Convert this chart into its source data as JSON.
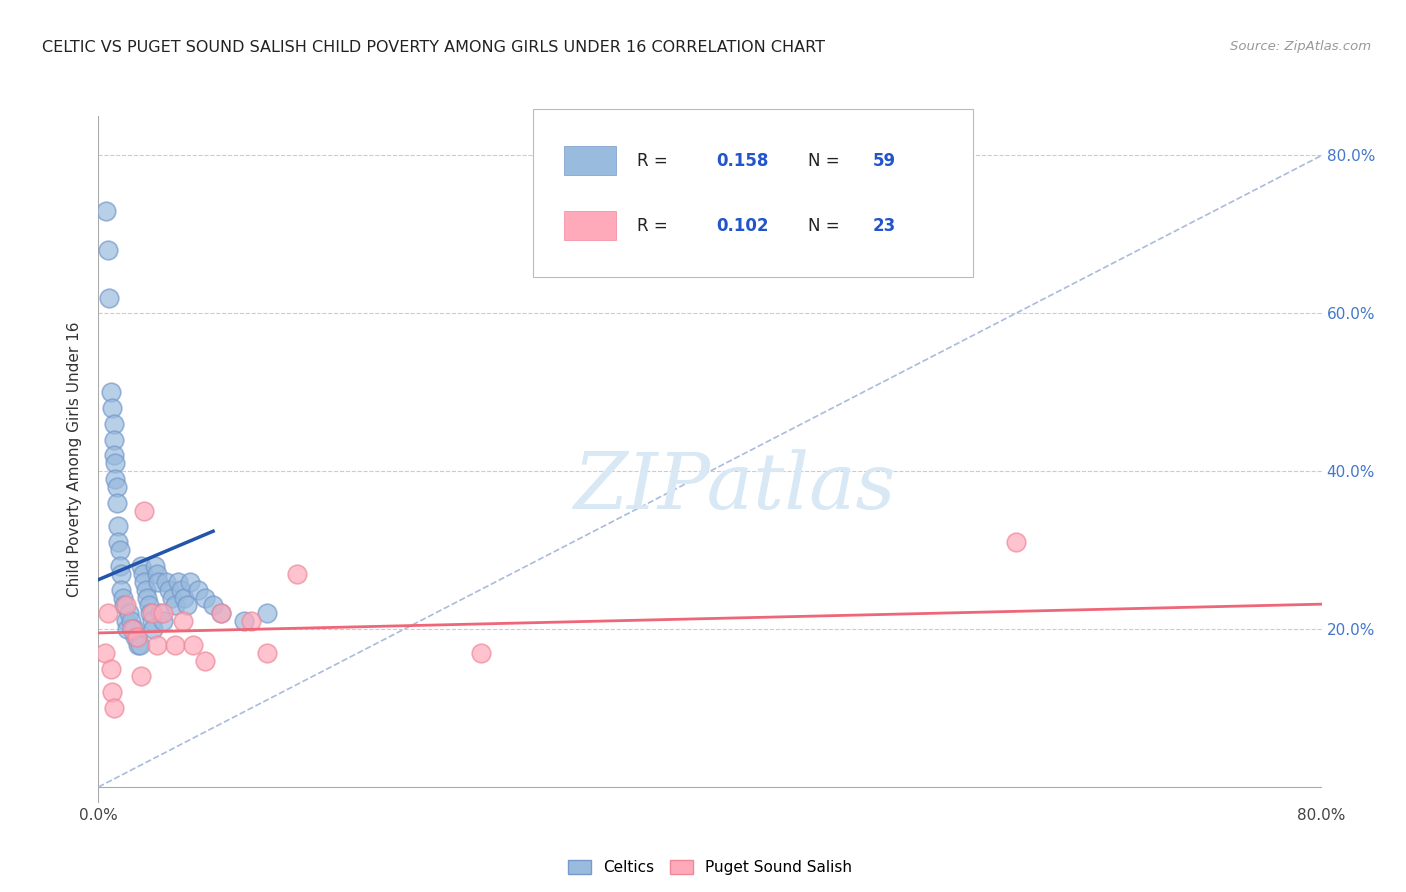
{
  "title": "CELTIC VS PUGET SOUND SALISH CHILD POVERTY AMONG GIRLS UNDER 16 CORRELATION CHART",
  "source": "Source: ZipAtlas.com",
  "ylabel": "Child Poverty Among Girls Under 16",
  "xlim": [
    0.0,
    0.8
  ],
  "ylim": [
    -0.02,
    0.85
  ],
  "plot_ylim": [
    0.0,
    0.8
  ],
  "xticks": [
    0.0,
    0.8
  ],
  "xticklabels": [
    "0.0%",
    "80.0%"
  ],
  "yticks": [
    0.2,
    0.4,
    0.6,
    0.8
  ],
  "yticklabels_right": [
    "20.0%",
    "40.0%",
    "60.0%",
    "80.0%"
  ],
  "celtics_color": "#99BBDD",
  "celtics_edge_color": "#7799CC",
  "puget_color": "#FFAABB",
  "puget_edge_color": "#EE8899",
  "celtics_R": 0.158,
  "celtics_N": 59,
  "puget_R": 0.102,
  "puget_N": 23,
  "watermark_text": "ZIPatlas",
  "background_color": "#ffffff",
  "grid_color": "#cccccc",
  "legend_label_color": "#2255CC",
  "celtics_label": "Celtics",
  "puget_label": "Puget Sound Salish",
  "celtics_x": [
    0.005,
    0.006,
    0.007,
    0.008,
    0.009,
    0.01,
    0.01,
    0.01,
    0.011,
    0.011,
    0.012,
    0.012,
    0.013,
    0.013,
    0.014,
    0.014,
    0.015,
    0.015,
    0.016,
    0.017,
    0.018,
    0.019,
    0.02,
    0.021,
    0.022,
    0.023,
    0.024,
    0.025,
    0.026,
    0.027,
    0.028,
    0.029,
    0.03,
    0.031,
    0.032,
    0.033,
    0.034,
    0.035,
    0.036,
    0.037,
    0.038,
    0.039,
    0.04,
    0.042,
    0.044,
    0.046,
    0.048,
    0.05,
    0.052,
    0.054,
    0.056,
    0.058,
    0.06,
    0.065,
    0.07,
    0.075,
    0.08,
    0.095,
    0.11
  ],
  "celtics_y": [
    0.73,
    0.68,
    0.62,
    0.5,
    0.48,
    0.46,
    0.44,
    0.42,
    0.41,
    0.39,
    0.38,
    0.36,
    0.33,
    0.31,
    0.3,
    0.28,
    0.27,
    0.25,
    0.24,
    0.23,
    0.21,
    0.2,
    0.22,
    0.21,
    0.2,
    0.2,
    0.19,
    0.19,
    0.18,
    0.18,
    0.28,
    0.27,
    0.26,
    0.25,
    0.24,
    0.23,
    0.22,
    0.21,
    0.2,
    0.28,
    0.27,
    0.26,
    0.22,
    0.21,
    0.26,
    0.25,
    0.24,
    0.23,
    0.26,
    0.25,
    0.24,
    0.23,
    0.26,
    0.25,
    0.24,
    0.23,
    0.22,
    0.21,
    0.22
  ],
  "puget_x": [
    0.004,
    0.006,
    0.008,
    0.009,
    0.01,
    0.018,
    0.022,
    0.025,
    0.028,
    0.03,
    0.035,
    0.038,
    0.042,
    0.05,
    0.055,
    0.062,
    0.07,
    0.08,
    0.1,
    0.11,
    0.13,
    0.6,
    0.25
  ],
  "puget_y": [
    0.17,
    0.22,
    0.15,
    0.12,
    0.1,
    0.23,
    0.2,
    0.19,
    0.14,
    0.35,
    0.22,
    0.18,
    0.22,
    0.18,
    0.21,
    0.18,
    0.16,
    0.22,
    0.21,
    0.17,
    0.27,
    0.31,
    0.17
  ]
}
